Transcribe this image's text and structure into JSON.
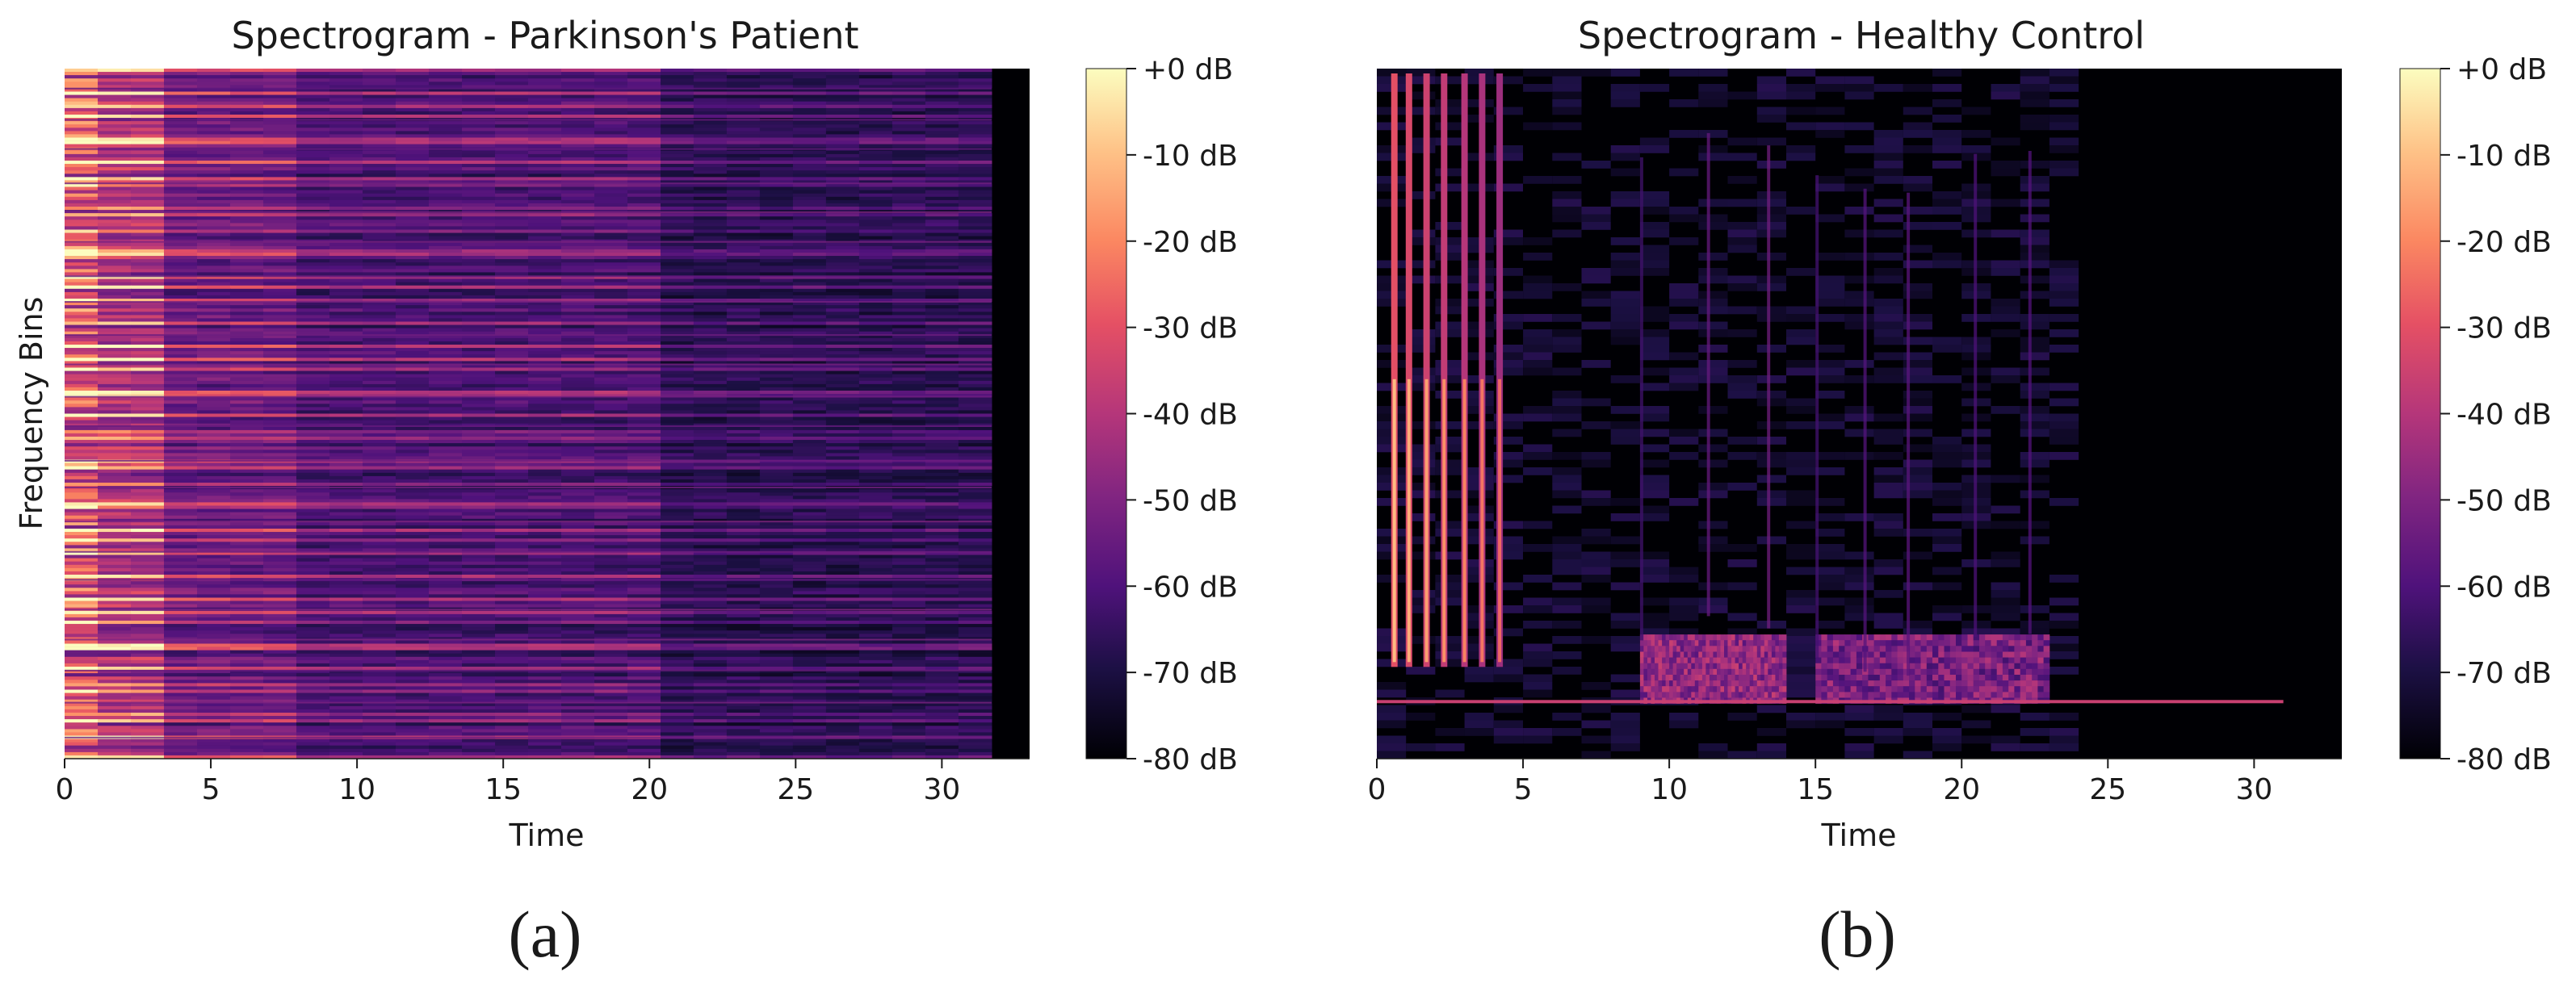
{
  "chart_data": [
    {
      "type": "heatmap",
      "title": "Spectrogram - Parkinson's Patient",
      "caption": "(a)",
      "xlabel": "Time",
      "ylabel": "Frequency Bins",
      "xlim": [
        0,
        33
      ],
      "xticks": [
        0,
        5,
        10,
        15,
        20,
        25,
        30
      ],
      "yticks": [],
      "signal_end_time": 31.7,
      "colormap": "magma",
      "colorbar": {
        "range_db": [
          -80,
          0
        ],
        "ticks": [
          "+0 dB",
          "-10 dB",
          "-20 dB",
          "-30 dB",
          "-40 dB",
          "-50 dB",
          "-60 dB",
          "-70 dB",
          "-80 dB"
        ]
      },
      "pattern": "dense horizontal harmonic bands across all frequencies, brightest in first ~3 s, fading after ~20 s, silent after ~31.7 s"
    },
    {
      "type": "heatmap",
      "title": "Spectrogram - Healthy Control",
      "caption": "(b)",
      "xlabel": "Time",
      "ylabel": "",
      "xlim": [
        0,
        33
      ],
      "xticks": [
        0,
        5,
        10,
        15,
        20,
        25,
        30
      ],
      "yticks": [],
      "bright_pulse_times": [
        0.6,
        1.1,
        1.7,
        2.3,
        3.0,
        3.6,
        4.2
      ],
      "low_band_energy_regions": [
        [
          9,
          14
        ],
        [
          15,
          23
        ]
      ],
      "colormap": "magma",
      "colorbar": {
        "range_db": [
          -80,
          0
        ],
        "ticks": [
          "+0 dB",
          "-10 dB",
          "-20 dB",
          "-30 dB",
          "-40 dB",
          "-50 dB",
          "-60 dB",
          "-70 dB",
          "-80 dB"
        ]
      },
      "pattern": "vertical pulse streaks in first ~4.5 s, scattered energy 5-23 s concentrated near low frequencies, mostly silent after ~24 s"
    }
  ]
}
